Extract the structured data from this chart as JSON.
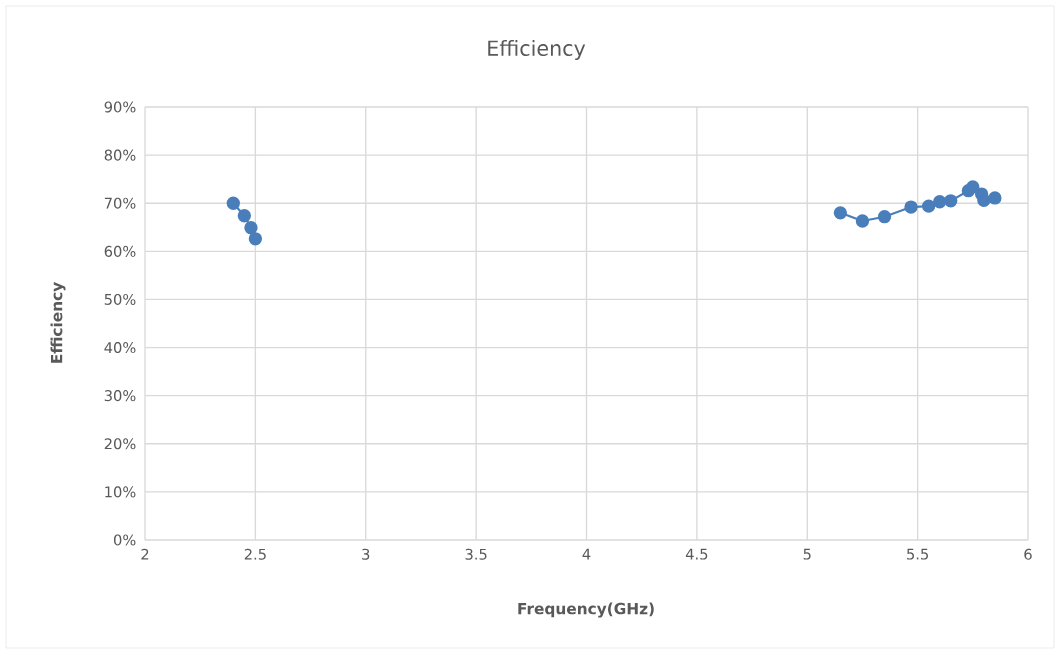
{
  "chart_data": {
    "type": "line",
    "title": "Efficiency",
    "xlabel": "Frequency(GHz)",
    "ylabel": "Efficiency",
    "series": [
      {
        "color": "#4a7ebb",
        "x": [
          2.4,
          2.45,
          2.48,
          2.5
        ],
        "values": [
          70.0,
          67.4,
          64.9,
          62.6
        ]
      },
      {
        "color": "#4a7ebb",
        "x": [
          5.15,
          5.25,
          5.35,
          5.47,
          5.55,
          5.6,
          5.65,
          5.73,
          5.75,
          5.79,
          5.8,
          5.85
        ],
        "values": [
          68.0,
          66.3,
          67.2,
          69.2,
          69.4,
          70.3,
          70.5,
          72.6,
          73.4,
          71.9,
          70.6,
          71.1
        ]
      }
    ],
    "xlim": [
      2,
      6
    ],
    "xticks": [
      2,
      2.5,
      3,
      3.5,
      4,
      4.5,
      5,
      5.5,
      6
    ],
    "ylim": [
      0,
      90
    ],
    "yticks": [
      {
        "value": 0,
        "label": "0%"
      },
      {
        "value": 10,
        "label": "10%"
      },
      {
        "value": 20,
        "label": "20%"
      },
      {
        "value": 30,
        "label": "30%"
      },
      {
        "value": 40,
        "label": "40%"
      },
      {
        "value": 50,
        "label": "50%"
      },
      {
        "value": 60,
        "label": "60%"
      },
      {
        "value": 70,
        "label": "70%"
      },
      {
        "value": 80,
        "label": "80%"
      },
      {
        "value": 90,
        "label": "90%"
      }
    ],
    "grid": true,
    "legend": false,
    "marker": "circle",
    "line_style": "solid"
  }
}
